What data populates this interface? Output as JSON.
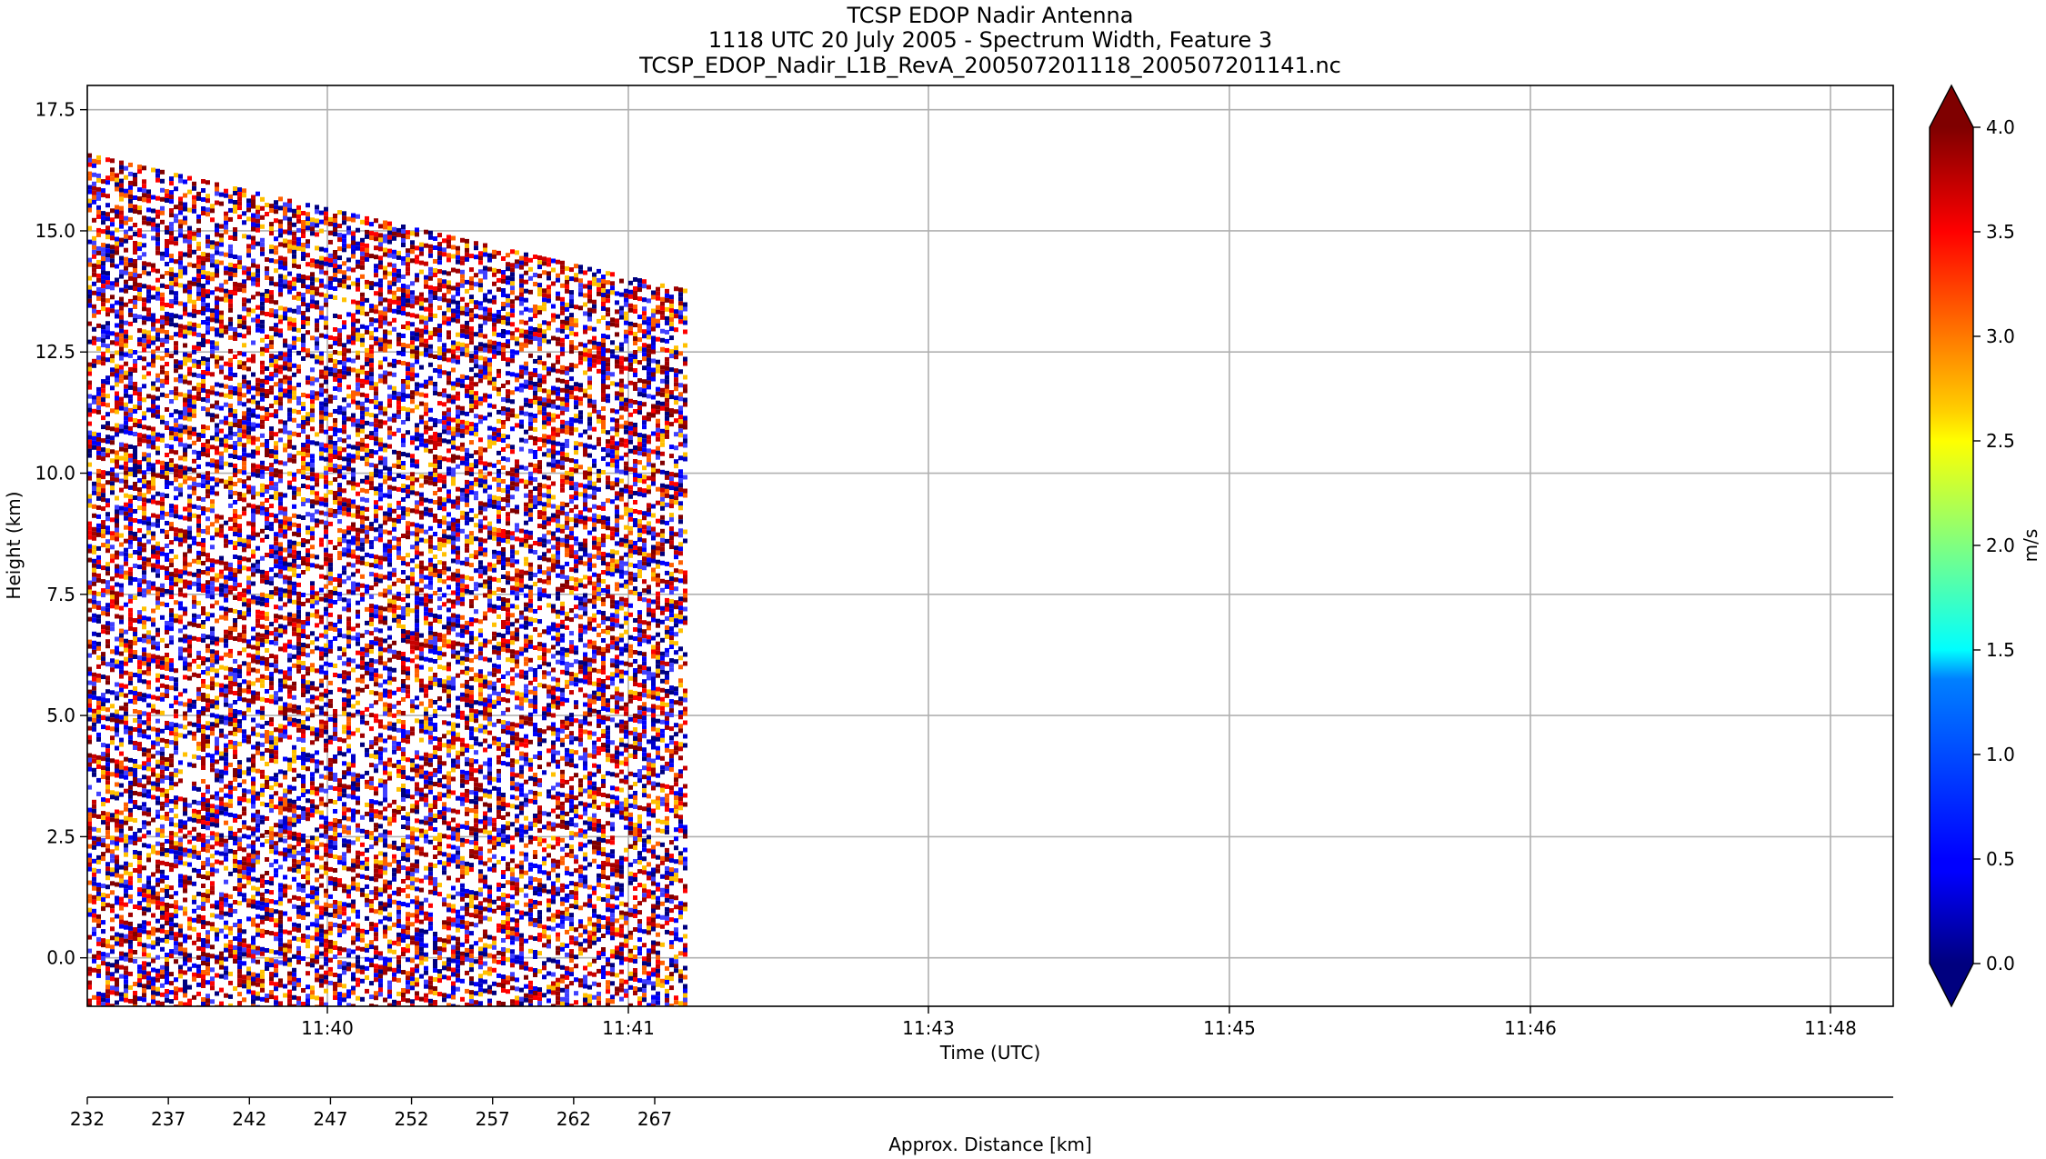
{
  "chart_data": {
    "type": "heatmap",
    "title": [
      "TCSP EDOP Nadir Antenna",
      "1118 UTC 20 July 2005 - Spectrum Width, Feature 3",
      "TCSP_EDOP_Nadir_L1B_RevA_200507201118_200507201141.nc"
    ],
    "xlabel": "Time (UTC)",
    "ylabel": "Height (km)",
    "x_tick_labels": [
      "11:40",
      "11:41",
      "11:43",
      "11:45",
      "11:46",
      "11:48"
    ],
    "y_ticks": [
      0.0,
      2.5,
      5.0,
      7.5,
      10.0,
      12.5,
      15.0,
      17.5
    ],
    "y_tick_labels": [
      "0.0",
      "2.5",
      "5.0",
      "7.5",
      "10.0",
      "12.5",
      "15.0",
      "17.5"
    ],
    "ylim": [
      -1.0,
      18.0
    ],
    "grid": true,
    "data_extent": {
      "x_start": "start of axis",
      "x_end": "just after 11:41",
      "top_height_km_start": 16.6,
      "top_height_km_end": 13.8,
      "bottom_height_km": -1.0
    },
    "colorbar": {
      "label": "m/s",
      "ticks": [
        0.0,
        0.5,
        1.0,
        1.5,
        2.0,
        2.5,
        3.0,
        3.5,
        4.0
      ],
      "tick_labels": [
        "0.0",
        "0.5",
        "1.0",
        "1.5",
        "2.0",
        "2.5",
        "3.0",
        "3.5",
        "4.0"
      ],
      "vmin": 0.0,
      "vmax": 4.0,
      "extend": "both",
      "colormap": "jet",
      "under_color": "#00007f",
      "over_color": "#7f0000"
    },
    "secondary_xaxis": {
      "label": "Approx. Distance [km]",
      "tick_labels": [
        "232",
        "237",
        "242",
        "247",
        "252",
        "257",
        "262",
        "267"
      ]
    }
  }
}
